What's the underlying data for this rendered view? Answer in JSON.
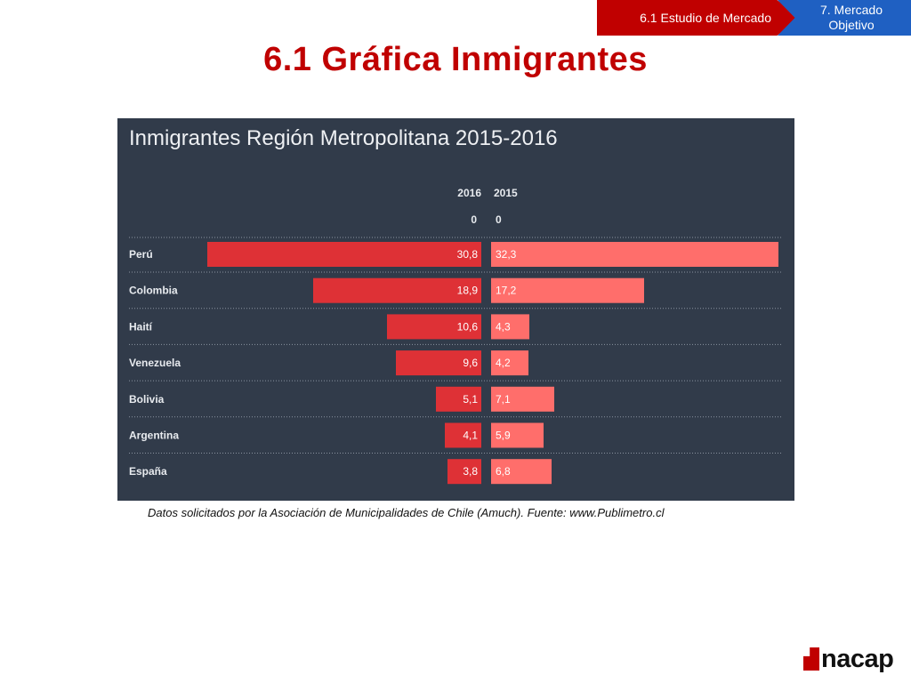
{
  "breadcrumb": {
    "current": "6.1 Estudio de Mercado",
    "next": "7. Mercado Objetivo"
  },
  "slide": {
    "title": "6.1 Gráfica Inmigrantes",
    "caption": "Datos solicitados por la Asociación de Municipalidades de Chile (Amuch). Fuente: www.Publimetro.cl"
  },
  "logo": {
    "text": "nacap"
  },
  "colors": {
    "panel_bg": "#313b4a",
    "series_2016": "#de3136",
    "series_2015": "#ff6e6b",
    "title_red": "#c00000",
    "breadcrumb_blue": "#1f60c2"
  },
  "chart_data": {
    "type": "bar",
    "title": "Inmigrantes Región Metropolitana 2015-2016",
    "orientation": "horizontal-butterfly",
    "categories": [
      "Perú",
      "Colombia",
      "Haití",
      "Venezuela",
      "Bolivia",
      "Argentina",
      "España"
    ],
    "series": [
      {
        "name": "2016",
        "values": [
          30.8,
          18.9,
          10.6,
          9.6,
          5.1,
          4.1,
          3.8
        ],
        "labels": [
          "30,8",
          "18,9",
          "10,6",
          "9,6",
          "5,1",
          "4,1",
          "3,8"
        ],
        "direction": "left"
      },
      {
        "name": "2015",
        "values": [
          32.3,
          17.2,
          4.3,
          4.2,
          7.1,
          5.9,
          6.8
        ],
        "labels": [
          "32,3",
          "17,2",
          "4,3",
          "4,2",
          "7,1",
          "5,9",
          "6,8"
        ],
        "direction": "right"
      }
    ],
    "axis_zero_label": "0",
    "xlim": [
      0,
      32.3
    ],
    "grid": "dotted row separators"
  }
}
